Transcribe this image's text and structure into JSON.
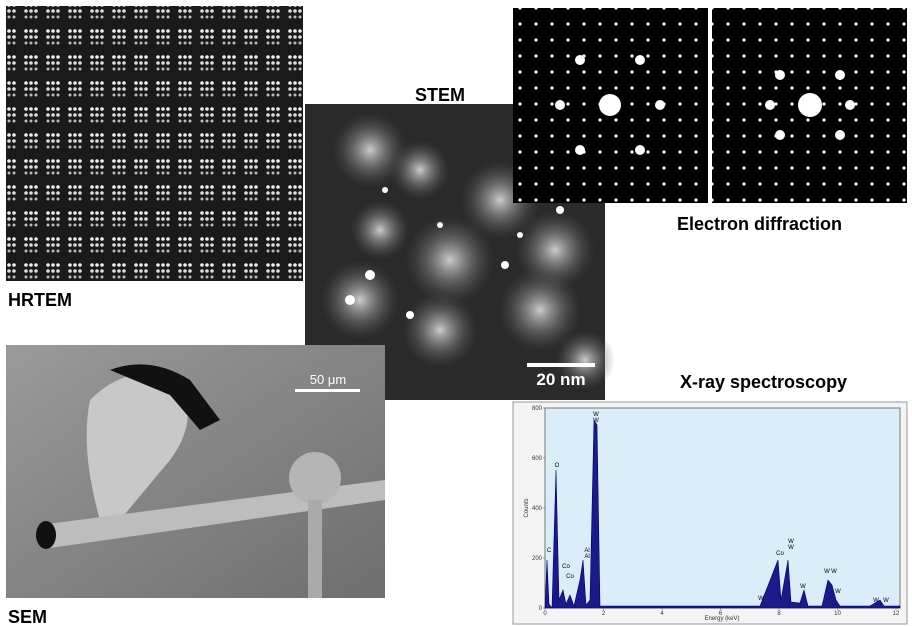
{
  "labels": {
    "hrtem": "HRTEM",
    "stem": "STEM",
    "sem": "SEM",
    "diffraction": "Electron diffraction",
    "xray": "X-ray spectroscopy"
  },
  "scale_bars": {
    "stem": "20 nm",
    "sem": "50 μm"
  },
  "spectrum": {
    "x_label": "Energy (keV)",
    "y_label": "Counts",
    "xticks": [
      0,
      2,
      4,
      6,
      8,
      10,
      12
    ],
    "yticks": [
      0,
      200,
      400,
      600,
      800
    ],
    "peak_labels": [
      "C",
      "O",
      "Co",
      "Co",
      "Al",
      "Al",
      "W",
      "W",
      "W",
      "Co",
      "W",
      "W",
      "W",
      "W",
      "W",
      "W",
      "W",
      "W"
    ]
  }
}
